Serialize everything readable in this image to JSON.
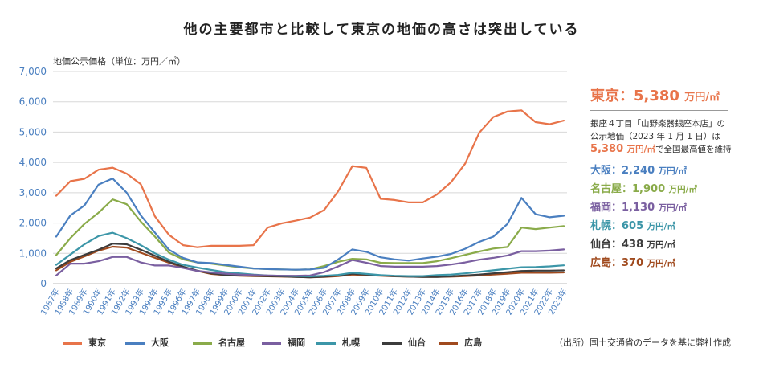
{
  "chart_data": {
    "type": "line",
    "title": "他の主要都市と比較して東京の地価の高さは突出している",
    "ylabel": "地価公示価格（単位：万円／㎡）",
    "ylim": [
      0,
      7000
    ],
    "yticks": [
      "0",
      "1,000",
      "2,000",
      "3,000",
      "4,000",
      "5,000",
      "6,000",
      "7,000"
    ],
    "grid": true,
    "legend": "bottom",
    "categories": [
      "1987年",
      "1988年",
      "1989年",
      "1990年",
      "1991年",
      "1992年",
      "1993年",
      "1994年",
      "1995年",
      "1996年",
      "1997年",
      "1998年",
      "1999年",
      "2000年",
      "2001年",
      "2002年",
      "2003年",
      "2004年",
      "2005年",
      "2006年",
      "2007年",
      "2008年",
      "2009年",
      "2010年",
      "2011年",
      "2012年",
      "2013年",
      "2014年",
      "2015年",
      "2016年",
      "2017年",
      "2018年",
      "2019年",
      "2020年",
      "2021年",
      "2022年",
      "2023年"
    ],
    "series": [
      {
        "name": "東京",
        "color": "#e8744a",
        "values": [
          2900,
          3380,
          3460,
          3760,
          3830,
          3630,
          3280,
          2220,
          1610,
          1270,
          1200,
          1250,
          1250,
          1250,
          1270,
          1850,
          1990,
          2080,
          2180,
          2430,
          3050,
          3880,
          3820,
          2800,
          2760,
          2680,
          2680,
          2940,
          3350,
          3960,
          4980,
          5500,
          5680,
          5720,
          5330,
          5260,
          5380
        ]
      },
      {
        "name": "大阪",
        "color": "#4a7fc0",
        "values": [
          1550,
          2250,
          2580,
          3270,
          3470,
          3000,
          2250,
          1680,
          1120,
          850,
          700,
          680,
          620,
          560,
          500,
          480,
          470,
          460,
          470,
          520,
          800,
          1130,
          1050,
          870,
          800,
          760,
          830,
          890,
          980,
          1150,
          1380,
          1550,
          1970,
          2830,
          2290,
          2190,
          2240
        ]
      },
      {
        "name": "名古屋",
        "color": "#8aab4a",
        "values": [
          940,
          1500,
          1970,
          2340,
          2780,
          2620,
          2050,
          1550,
          1020,
          800,
          700,
          660,
          600,
          540,
          500,
          480,
          470,
          460,
          470,
          580,
          720,
          820,
          800,
          690,
          680,
          680,
          680,
          740,
          840,
          950,
          1060,
          1160,
          1210,
          1850,
          1800,
          1850,
          1900
        ]
      },
      {
        "name": "福岡",
        "color": "#7a5fa0",
        "values": [
          270,
          660,
          660,
          740,
          880,
          880,
          700,
          600,
          600,
          520,
          420,
          370,
          330,
          300,
          280,
          270,
          260,
          260,
          270,
          380,
          570,
          780,
          690,
          580,
          560,
          560,
          560,
          580,
          630,
          700,
          790,
          850,
          930,
          1070,
          1070,
          1090,
          1130
        ]
      },
      {
        "name": "札幌",
        "color": "#3c96a8",
        "values": [
          620,
          960,
          1300,
          1570,
          1680,
          1500,
          1270,
          1000,
          790,
          620,
          530,
          450,
          380,
          340,
          300,
          270,
          260,
          250,
          240,
          260,
          290,
          360,
          320,
          280,
          260,
          250,
          250,
          280,
          300,
          340,
          390,
          440,
          490,
          540,
          550,
          570,
          605
        ]
      },
      {
        "name": "仙台",
        "color": "#3c3c3c",
        "values": [
          500,
          780,
          950,
          1120,
          1320,
          1300,
          1120,
          920,
          720,
          560,
          430,
          340,
          290,
          270,
          260,
          250,
          240,
          220,
          210,
          230,
          270,
          330,
          300,
          270,
          250,
          230,
          220,
          220,
          240,
          270,
          300,
          340,
          380,
          420,
          430,
          430,
          438
        ]
      },
      {
        "name": "広島",
        "color": "#a04a1e",
        "values": [
          440,
          720,
          900,
          1090,
          1220,
          1190,
          1020,
          850,
          690,
          540,
          420,
          320,
          280,
          260,
          250,
          240,
          230,
          220,
          210,
          220,
          250,
          300,
          280,
          260,
          240,
          230,
          220,
          220,
          230,
          250,
          270,
          300,
          330,
          360,
          360,
          360,
          370
        ]
      }
    ]
  },
  "side_panel": {
    "tokyo_head_city": "東京：",
    "tokyo_head_value": "5,380",
    "tokyo_head_unit": "万円/㎡",
    "desc_line1": "銀座４丁目「山野楽器銀座本店」の",
    "desc_line2": "公示地価（2023 年 1 月 1 日）は",
    "desc_hl_value": "5,380",
    "desc_hl_unit": "万円/㎡",
    "desc_tail": "で全国最高値を維持",
    "cities": [
      {
        "label": "大阪：",
        "value": "2,240",
        "unit": "万円/㎡",
        "color": "#4a7fc0"
      },
      {
        "label": "名古屋：",
        "value": "1,900",
        "unit": "万円/㎡",
        "color": "#8aab4a"
      },
      {
        "label": "福岡：",
        "value": "1,130",
        "unit": "万円/㎡",
        "color": "#7a5fa0"
      },
      {
        "label": "札幌：",
        "value": "605",
        "unit": "万円/㎡",
        "color": "#3c96a8"
      },
      {
        "label": "仙台：",
        "value": "438",
        "unit": "万円/㎡",
        "color": "#3c3c3c"
      },
      {
        "label": "広島：",
        "value": "370",
        "unit": "万円/㎡",
        "color": "#a04a1e"
      }
    ]
  },
  "source": "（出所）国土交通省のデータを基に弊社作成"
}
